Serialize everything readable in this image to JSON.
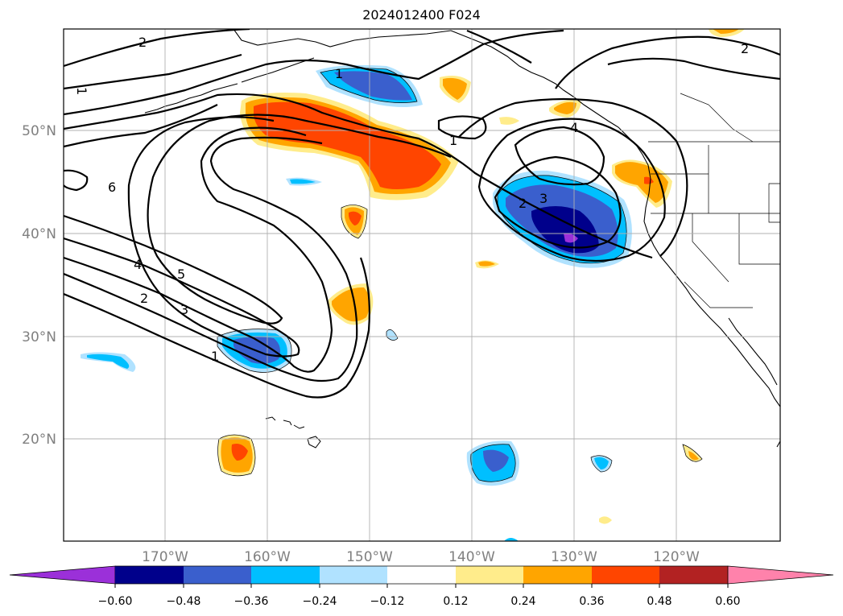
{
  "title": "2024012400 F024",
  "latitude_labels": [
    "50°N",
    "40°N",
    "30°N",
    "20°N"
  ],
  "longitude_labels": [
    "170°W",
    "160°W",
    "150°W",
    "140°W",
    "130°W",
    "120°W"
  ],
  "contour_labels": [
    "2",
    "2",
    "1",
    "1",
    "1",
    "6",
    "4",
    "5",
    "2",
    "3",
    "1",
    "4",
    "2",
    "3"
  ],
  "colorbar": {
    "tick_labels": [
      "−0.60",
      "−0.48",
      "−0.36",
      "−0.24",
      "−0.12",
      "0.12",
      "0.24",
      "0.36",
      "0.48",
      "0.60"
    ],
    "colors": [
      "#9b30d9",
      "#00008b",
      "#3a5fcd",
      "#00bfff",
      "#b0e2ff",
      "#ffffff",
      "#ffec8b",
      "#ffa500",
      "#ff4500",
      "#b22222",
      "#ff82ab"
    ]
  },
  "fill_colors": {
    "orange_light": "#ffec8b",
    "orange": "#ffa500",
    "red_orange": "#ff4500",
    "blue_light": "#b0e2ff",
    "blue_sky": "#00bfff",
    "blue_royal": "#3a5fcd",
    "navy": "#00008b",
    "purple": "#9b30d9"
  }
}
